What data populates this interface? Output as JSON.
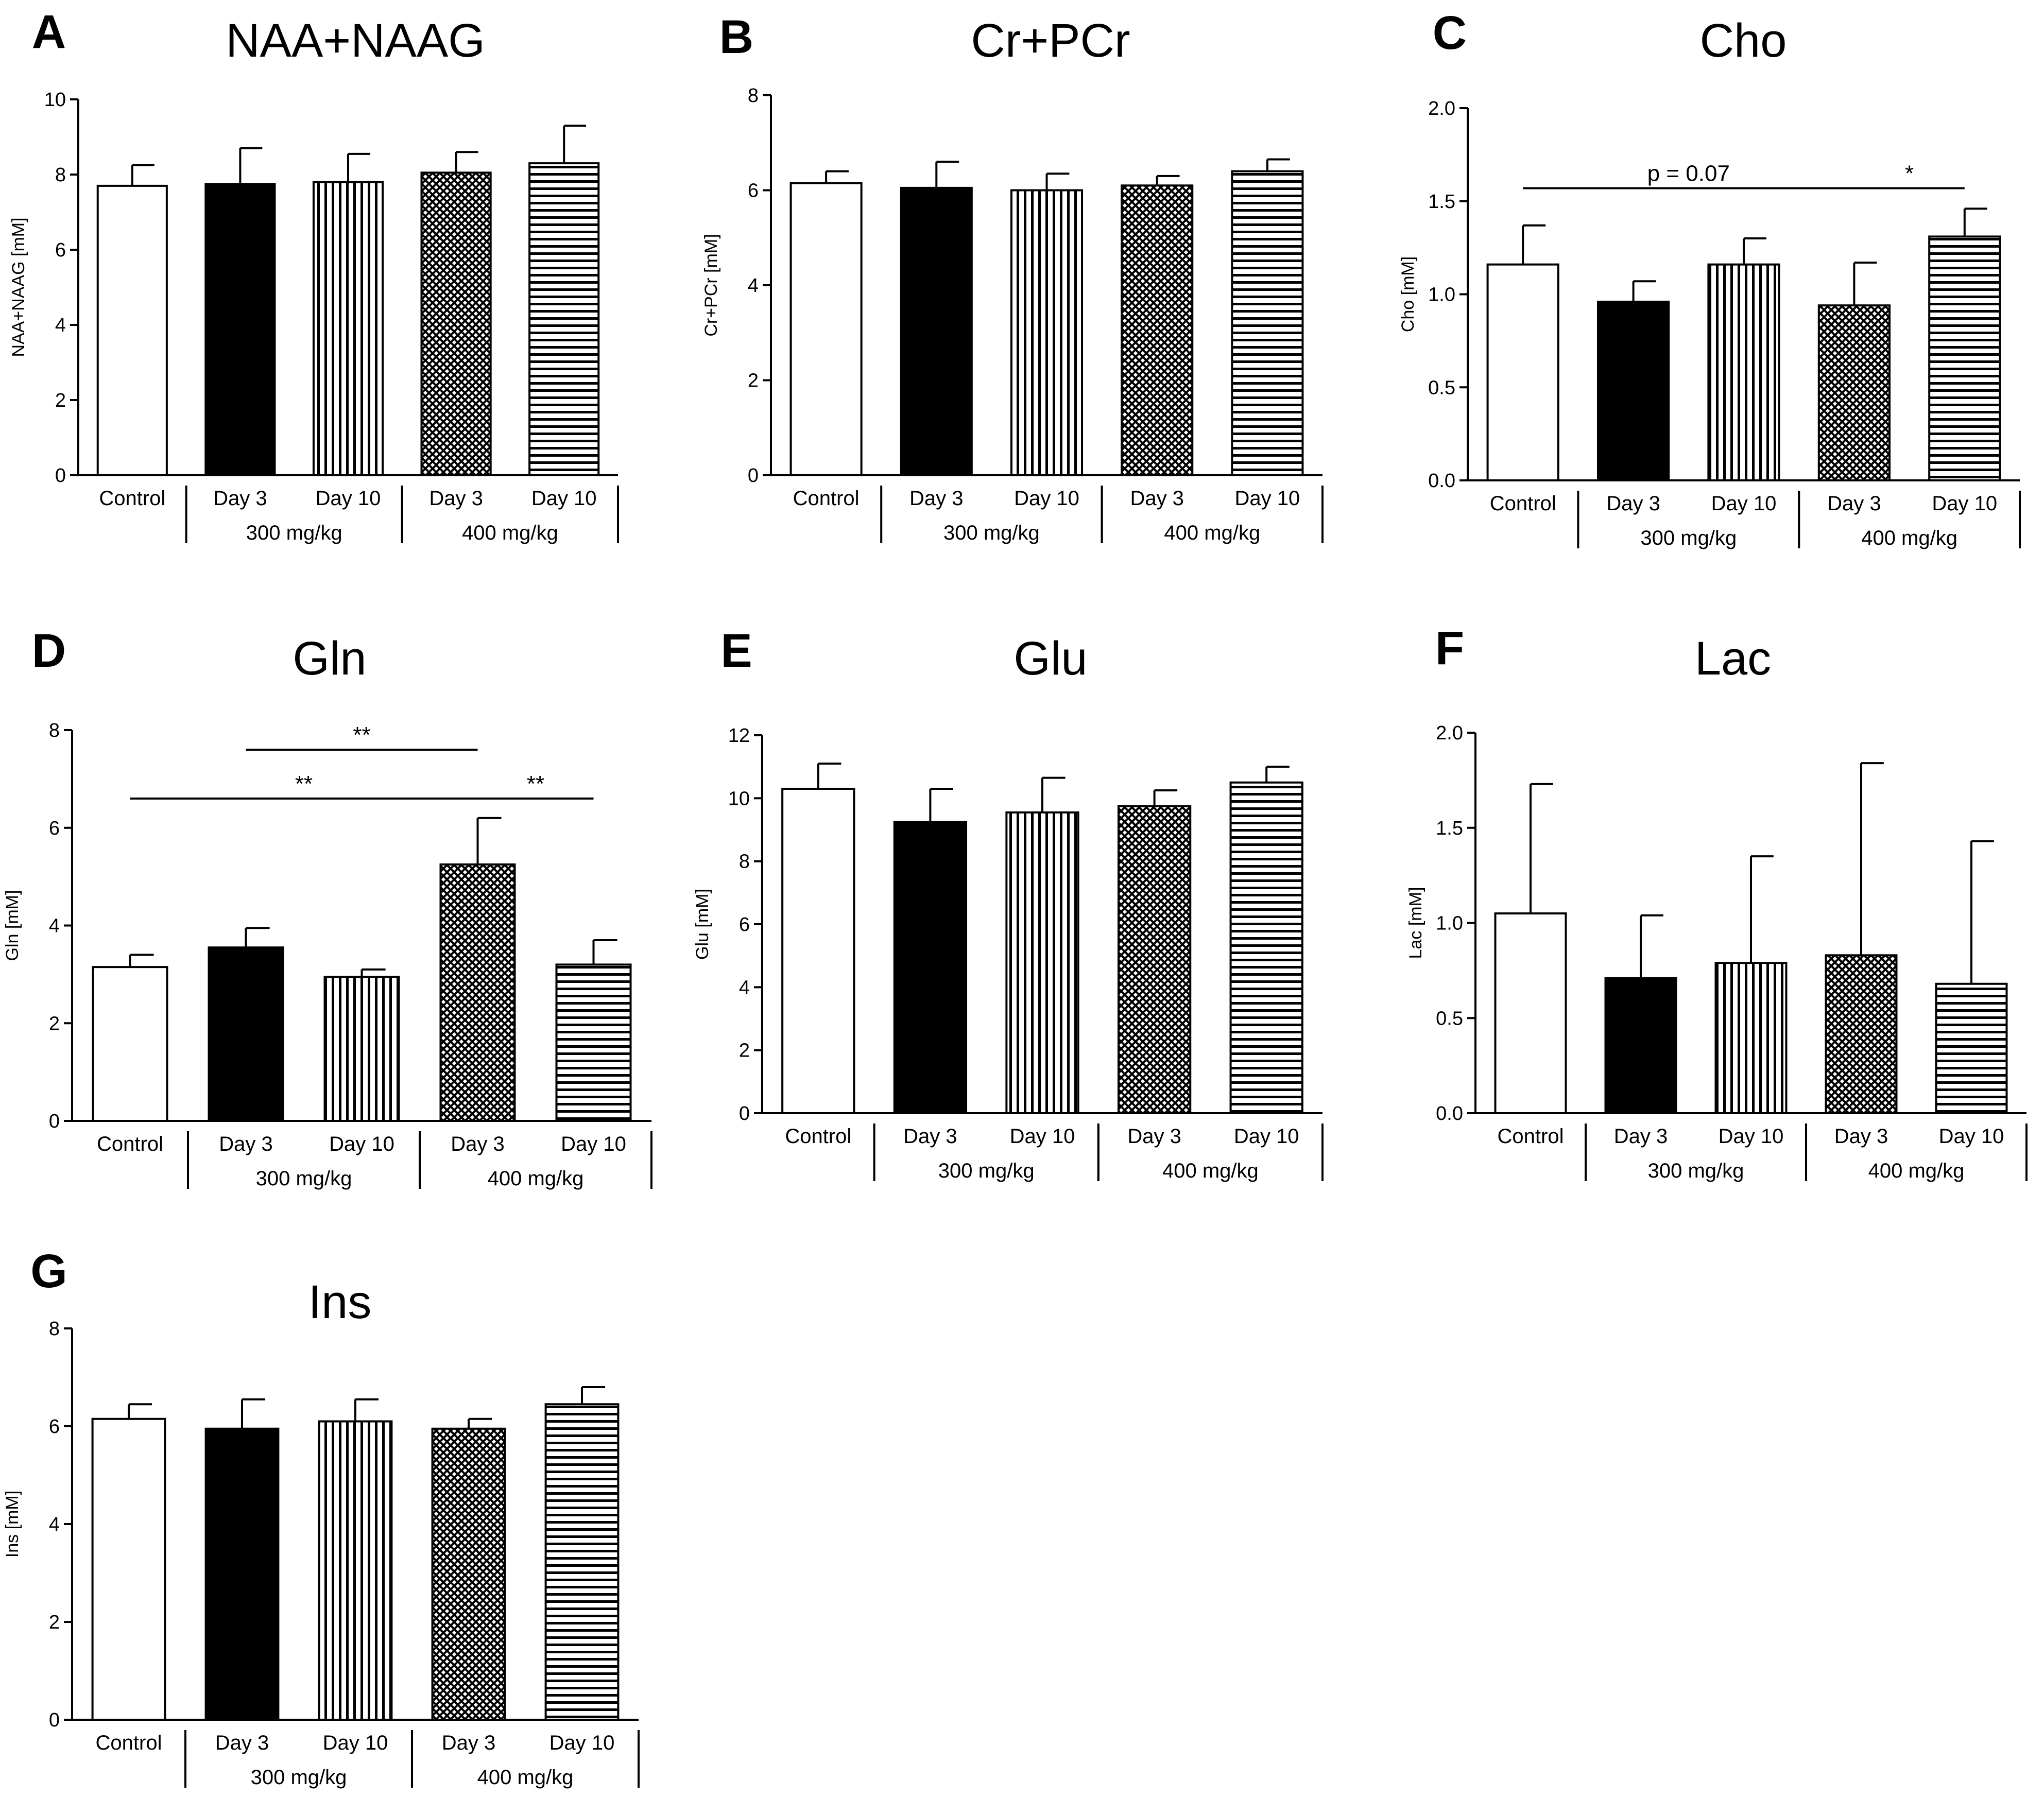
{
  "figure_label": "Brain metabolite concentrations by group",
  "categories": [
    "Control",
    "Day 3",
    "Day 10",
    "Day 3",
    "Day 10"
  ],
  "groups": [
    {
      "label": "300 mg/kg",
      "from": 1,
      "to": 2
    },
    {
      "label": "400 mg/kg",
      "from": 3,
      "to": 4
    }
  ],
  "bar_patterns": [
    "open",
    "solid",
    "vertical-lines",
    "crosshatch",
    "horizontal-lines"
  ],
  "colors": {
    "ink": "#000000",
    "background": "#ffffff"
  },
  "chart_data": [
    {
      "panel": "A",
      "title": "NAA+NAAG",
      "type": "bar",
      "ylabel": "NAA+NAAG [mM]",
      "ylim": [
        0,
        10
      ],
      "yticks": [
        0,
        2,
        4,
        6,
        8,
        10
      ],
      "tick_labels": [
        "0",
        "2",
        "4",
        "6",
        "8",
        "10"
      ],
      "values": [
        7.7,
        7.75,
        7.8,
        8.05,
        8.3
      ],
      "errors": [
        0.55,
        0.95,
        0.75,
        0.55,
        1.0
      ],
      "significance": []
    },
    {
      "panel": "B",
      "title": "Cr+PCr",
      "type": "bar",
      "ylabel": "Cr+PCr [mM]",
      "ylim": [
        0,
        8
      ],
      "yticks": [
        0,
        2,
        4,
        6,
        8
      ],
      "tick_labels": [
        "0",
        "2",
        "4",
        "6",
        "8"
      ],
      "values": [
        6.15,
        6.05,
        6.0,
        6.1,
        6.4
      ],
      "errors": [
        0.25,
        0.55,
        0.35,
        0.2,
        0.25
      ],
      "significance": []
    },
    {
      "panel": "C",
      "title": "Cho",
      "type": "bar",
      "ylabel": "Cho [mM]",
      "ylim": [
        0,
        2.0
      ],
      "yticks": [
        0,
        0.5,
        1.0,
        1.5,
        2.0
      ],
      "tick_labels": [
        "0.0",
        "0.5",
        "1.0",
        "1.5",
        "2.0"
      ],
      "values": [
        1.16,
        0.96,
        1.16,
        0.94,
        1.31
      ],
      "errors": [
        0.21,
        0.11,
        0.14,
        0.23,
        0.15
      ],
      "significance": [
        {
          "from": 0,
          "to": 3,
          "label": "p = 0.07",
          "y": 1.57
        },
        {
          "from": 3,
          "to": 4,
          "label": "*",
          "y": 1.57
        }
      ]
    },
    {
      "panel": "D",
      "title": "Gln",
      "type": "bar",
      "ylabel": "Gln [mM]",
      "ylim": [
        0,
        8
      ],
      "yticks": [
        0,
        2,
        4,
        6,
        8
      ],
      "tick_labels": [
        "0",
        "2",
        "4",
        "6",
        "8"
      ],
      "values": [
        3.15,
        3.55,
        2.95,
        5.25,
        3.2
      ],
      "errors": [
        0.25,
        0.4,
        0.15,
        0.95,
        0.5
      ],
      "significance": [
        {
          "from": 1,
          "to": 3,
          "label": "**",
          "y": 7.6
        },
        {
          "from": 0,
          "to": 3,
          "label": "**",
          "y": 6.6
        },
        {
          "from": 3,
          "to": 4,
          "label": "**",
          "y": 6.6
        }
      ]
    },
    {
      "panel": "E",
      "title": "Glu",
      "type": "bar",
      "ylabel": "Glu [mM]",
      "ylim": [
        0,
        12
      ],
      "yticks": [
        0,
        2,
        4,
        6,
        8,
        10,
        12
      ],
      "tick_labels": [
        "0",
        "2",
        "4",
        "6",
        "8",
        "10",
        "12"
      ],
      "values": [
        10.3,
        9.25,
        9.55,
        9.75,
        10.5
      ],
      "errors": [
        0.8,
        1.05,
        1.1,
        0.5,
        0.5
      ],
      "significance": []
    },
    {
      "panel": "F",
      "title": "Lac",
      "type": "bar",
      "ylabel": "Lac [mM]",
      "ylim": [
        0,
        2.0
      ],
      "yticks": [
        0,
        0.5,
        1.0,
        1.5,
        2.0
      ],
      "tick_labels": [
        "0.0",
        "0.5",
        "1.0",
        "1.5",
        "2.0"
      ],
      "values": [
        1.05,
        0.71,
        0.79,
        0.83,
        0.68
      ],
      "errors": [
        0.68,
        0.33,
        0.56,
        1.01,
        0.75
      ],
      "significance": []
    },
    {
      "panel": "G",
      "title": "Ins",
      "type": "bar",
      "ylabel": "Ins [mM]",
      "ylim": [
        0,
        8
      ],
      "yticks": [
        0,
        2,
        4,
        6,
        8
      ],
      "tick_labels": [
        "0",
        "2",
        "4",
        "6",
        "8"
      ],
      "values": [
        6.15,
        5.95,
        6.1,
        5.95,
        6.45
      ],
      "errors": [
        0.3,
        0.6,
        0.45,
        0.2,
        0.35
      ],
      "significance": []
    }
  ]
}
